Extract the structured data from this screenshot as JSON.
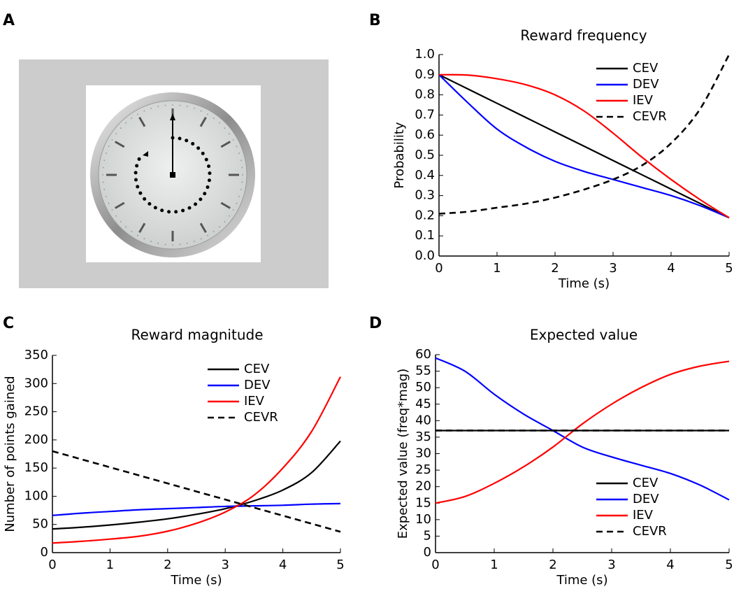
{
  "panel_labels": [
    "A",
    "B",
    "C",
    "D"
  ],
  "chart_data": [
    {
      "type": "line",
      "title": "Reward frequency",
      "xlabel": "Time (s)",
      "ylabel": "Probability",
      "x": [
        0,
        0.5,
        1,
        1.5,
        2,
        2.5,
        3,
        3.5,
        4,
        4.5,
        5
      ],
      "xlim": [
        0,
        5
      ],
      "xticks": [
        0,
        1,
        2,
        3,
        4,
        5
      ],
      "ylim": [
        0,
        1
      ],
      "yticks": [
        {
          "value": 0,
          "label": "0.0"
        },
        0.1,
        0.2,
        0.3,
        0.4,
        0.5,
        0.6,
        0.7,
        0.8,
        0.9,
        {
          "value": 1,
          "label": "1.0"
        }
      ],
      "legend": "upper right",
      "series": [
        {
          "name": "CEV",
          "color": "#000000",
          "linestyle": "solid",
          "values": [
            0.9,
            0.829,
            0.758,
            0.687,
            0.616,
            0.545,
            0.474,
            0.403,
            0.332,
            0.261,
            0.19
          ]
        },
        {
          "name": "DEV",
          "color": "#0000ff",
          "linestyle": "solid",
          "values": [
            0.9,
            0.76,
            0.63,
            0.54,
            0.47,
            0.42,
            0.38,
            0.34,
            0.3,
            0.25,
            0.19
          ]
        },
        {
          "name": "IEV",
          "color": "#ff0000",
          "linestyle": "solid",
          "values": [
            0.9,
            0.898,
            0.88,
            0.85,
            0.8,
            0.72,
            0.61,
            0.49,
            0.38,
            0.28,
            0.19
          ]
        },
        {
          "name": "CEVR",
          "color": "#000000",
          "linestyle": "dashed",
          "values": [
            0.21,
            0.22,
            0.24,
            0.26,
            0.29,
            0.33,
            0.38,
            0.45,
            0.56,
            0.73,
            1.0
          ]
        }
      ]
    },
    {
      "type": "line",
      "title": "Reward magnitude",
      "xlabel": "Time (s)",
      "ylabel": "Number of points gained",
      "x": [
        0,
        0.5,
        1,
        1.5,
        2,
        2.5,
        3,
        3.5,
        4,
        4.5,
        5
      ],
      "xlim": [
        0,
        5
      ],
      "xticks": [
        0,
        1,
        2,
        3,
        4,
        5
      ],
      "ylim": [
        0,
        350
      ],
      "yticks": [
        0,
        50,
        100,
        150,
        200,
        250,
        300,
        350
      ],
      "legend": "upper right",
      "series": [
        {
          "name": "CEV",
          "color": "#000000",
          "linestyle": "solid",
          "values": [
            42,
            45,
            49,
            54,
            60,
            68,
            78,
            92,
            111,
            142,
            198
          ]
        },
        {
          "name": "DEV",
          "color": "#0000ff",
          "linestyle": "solid",
          "values": [
            66,
            70,
            73,
            76,
            78,
            80,
            82,
            83,
            84,
            86,
            87
          ]
        },
        {
          "name": "IEV",
          "color": "#ff0000",
          "linestyle": "solid",
          "values": [
            17,
            20,
            24,
            29,
            38,
            52,
            72,
            102,
            150,
            215,
            312
          ]
        },
        {
          "name": "CEVR",
          "color": "#000000",
          "linestyle": "dashed",
          "values": [
            180,
            165.7,
            151.4,
            137.1,
            122.8,
            108.5,
            94.2,
            79.9,
            65.6,
            51.3,
            37
          ]
        }
      ]
    },
    {
      "type": "line",
      "title": "Expected value",
      "xlabel": "Time (s)",
      "ylabel": "Expected value (freq*mag)",
      "x": [
        0,
        0.5,
        1,
        1.5,
        2,
        2.5,
        3,
        3.5,
        4,
        4.5,
        5
      ],
      "xlim": [
        0,
        5
      ],
      "xticks": [
        0,
        1,
        2,
        3,
        4,
        5
      ],
      "ylim": [
        0,
        60
      ],
      "yticks": [
        0,
        5,
        10,
        15,
        20,
        25,
        30,
        35,
        40,
        45,
        50,
        55,
        60
      ],
      "legend": "lower right",
      "series": [
        {
          "name": "CEV",
          "color": "#000000",
          "linestyle": "solid",
          "values": [
            37,
            37,
            37,
            37,
            37,
            37,
            37,
            37,
            37,
            37,
            37
          ]
        },
        {
          "name": "DEV",
          "color": "#0000ff",
          "linestyle": "solid",
          "values": [
            59,
            55,
            48,
            42,
            37,
            32,
            29,
            26.5,
            24,
            20.5,
            16
          ]
        },
        {
          "name": "IEV",
          "color": "#ff0000",
          "linestyle": "solid",
          "values": [
            15,
            17,
            21,
            26,
            32,
            39,
            45,
            50,
            54,
            56.5,
            58
          ]
        },
        {
          "name": "CEVR",
          "color": "#000000",
          "linestyle": "dashed",
          "values": [
            37,
            37,
            37,
            37,
            37,
            37,
            37,
            37,
            37,
            37,
            37
          ]
        }
      ]
    }
  ]
}
